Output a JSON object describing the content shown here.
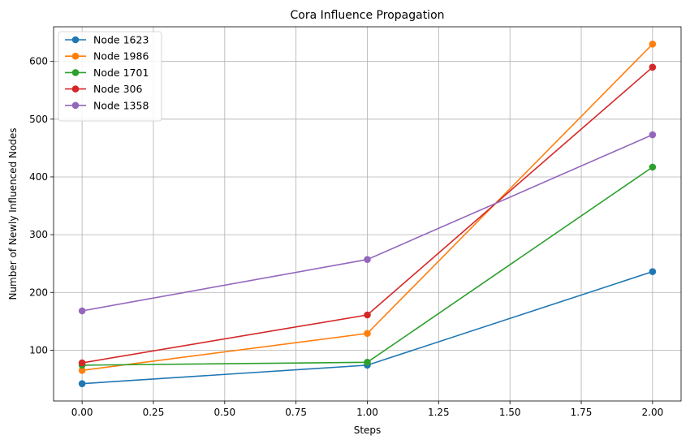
{
  "chart_data": {
    "type": "line",
    "title": "Cora Influence Propagation",
    "xlabel": "Steps",
    "ylabel": "Number of Newly Influenced Nodes",
    "x": [
      0,
      1,
      2
    ],
    "xlim": [
      -0.1,
      2.1
    ],
    "ylim": [
      12,
      660
    ],
    "xticks": [
      "0.00",
      "0.25",
      "0.50",
      "0.75",
      "1.00",
      "1.25",
      "1.50",
      "1.75",
      "2.00"
    ],
    "xtick_values": [
      0,
      0.25,
      0.5,
      0.75,
      1.0,
      1.25,
      1.5,
      1.75,
      2.0
    ],
    "yticks": [
      "100",
      "200",
      "300",
      "400",
      "500",
      "600"
    ],
    "ytick_values": [
      100,
      200,
      300,
      400,
      500,
      600
    ],
    "grid": true,
    "legend_position": "top-left",
    "series": [
      {
        "name": "Node 1623",
        "color": "#1f77b4",
        "values": [
          42,
          74,
          236
        ]
      },
      {
        "name": "Node 1986",
        "color": "#ff7f0e",
        "values": [
          65,
          129,
          630
        ]
      },
      {
        "name": "Node 1701",
        "color": "#2ca02c",
        "values": [
          74,
          79,
          417
        ]
      },
      {
        "name": "Node 306",
        "color": "#d62728",
        "values": [
          78,
          161,
          590
        ]
      },
      {
        "name": "Node 1358",
        "color": "#9467bd",
        "values": [
          168,
          257,
          473
        ]
      }
    ]
  }
}
